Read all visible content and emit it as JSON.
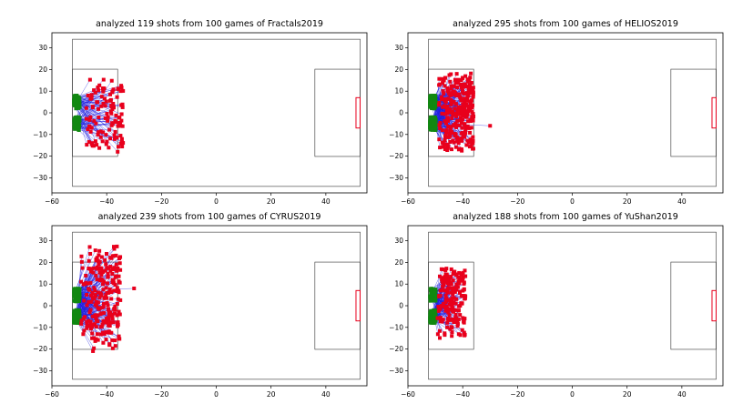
{
  "chart_data": [
    {
      "type": "scatter",
      "title": "analyzed 119 shots from 100 games of Fractals2019",
      "xlabel": "",
      "ylabel": "",
      "xlim": [
        -60,
        55
      ],
      "ylim": [
        -37,
        37
      ],
      "xticks": [
        -60,
        -40,
        -20,
        0,
        20,
        40
      ],
      "yticks": [
        -30,
        -20,
        -10,
        0,
        10,
        20,
        30
      ],
      "shots": 119,
      "start_x_range": [
        -50,
        -34
      ],
      "start_y_range": [
        -18,
        16
      ],
      "outliers": [
        [
          -36,
          -18
        ]
      ]
    },
    {
      "type": "scatter",
      "title": "analyzed 295 shots from 100 games of HELIOS2019",
      "xlabel": "",
      "ylabel": "",
      "xlim": [
        -60,
        55
      ],
      "ylim": [
        -37,
        37
      ],
      "xticks": [
        -60,
        -40,
        -20,
        0,
        20,
        40
      ],
      "yticks": [
        -30,
        -20,
        -10,
        0,
        10,
        20,
        30
      ],
      "shots": 295,
      "start_x_range": [
        -51,
        -36
      ],
      "start_y_range": [
        -19,
        19
      ],
      "outliers": [
        [
          -30,
          -6
        ]
      ]
    },
    {
      "type": "scatter",
      "title": "analyzed 239 shots from 100 games of CYRUS2019",
      "xlabel": "",
      "ylabel": "",
      "xlim": [
        -60,
        55
      ],
      "ylim": [
        -37,
        37
      ],
      "xticks": [
        -60,
        -40,
        -20,
        0,
        20,
        40
      ],
      "yticks": [
        -30,
        -20,
        -10,
        0,
        10,
        20,
        30
      ],
      "shots": 239,
      "start_x_range": [
        -52,
        -35
      ],
      "start_y_range": [
        -21,
        28
      ],
      "outliers": [
        [
          -30,
          8
        ],
        [
          -36,
          -8
        ],
        [
          -37,
          -16
        ],
        [
          -45,
          -21
        ]
      ]
    },
    {
      "type": "scatter",
      "title": "analyzed 188 shots from 100 games of YuShan2019",
      "xlabel": "",
      "ylabel": "",
      "xlim": [
        -60,
        55
      ],
      "ylim": [
        -37,
        37
      ],
      "xticks": [
        -60,
        -40,
        -20,
        0,
        20,
        40
      ],
      "yticks": [
        -30,
        -20,
        -10,
        0,
        10,
        20,
        30
      ],
      "shots": 188,
      "start_x_range": [
        -51,
        -39
      ],
      "start_y_range": [
        -16,
        18
      ],
      "outliers": []
    }
  ],
  "pitch": {
    "half_length": 52.5,
    "half_width": 34,
    "box_depth": 16.5,
    "box_half_width": 20.16,
    "goal_half_width": 7.01,
    "goal_depth": 1.5
  },
  "colors": {
    "shot_start": "#e8001c",
    "shot_line": "#2020e0",
    "goal_end": "#118811",
    "frame": "#333333",
    "goal": "#e8001c"
  }
}
